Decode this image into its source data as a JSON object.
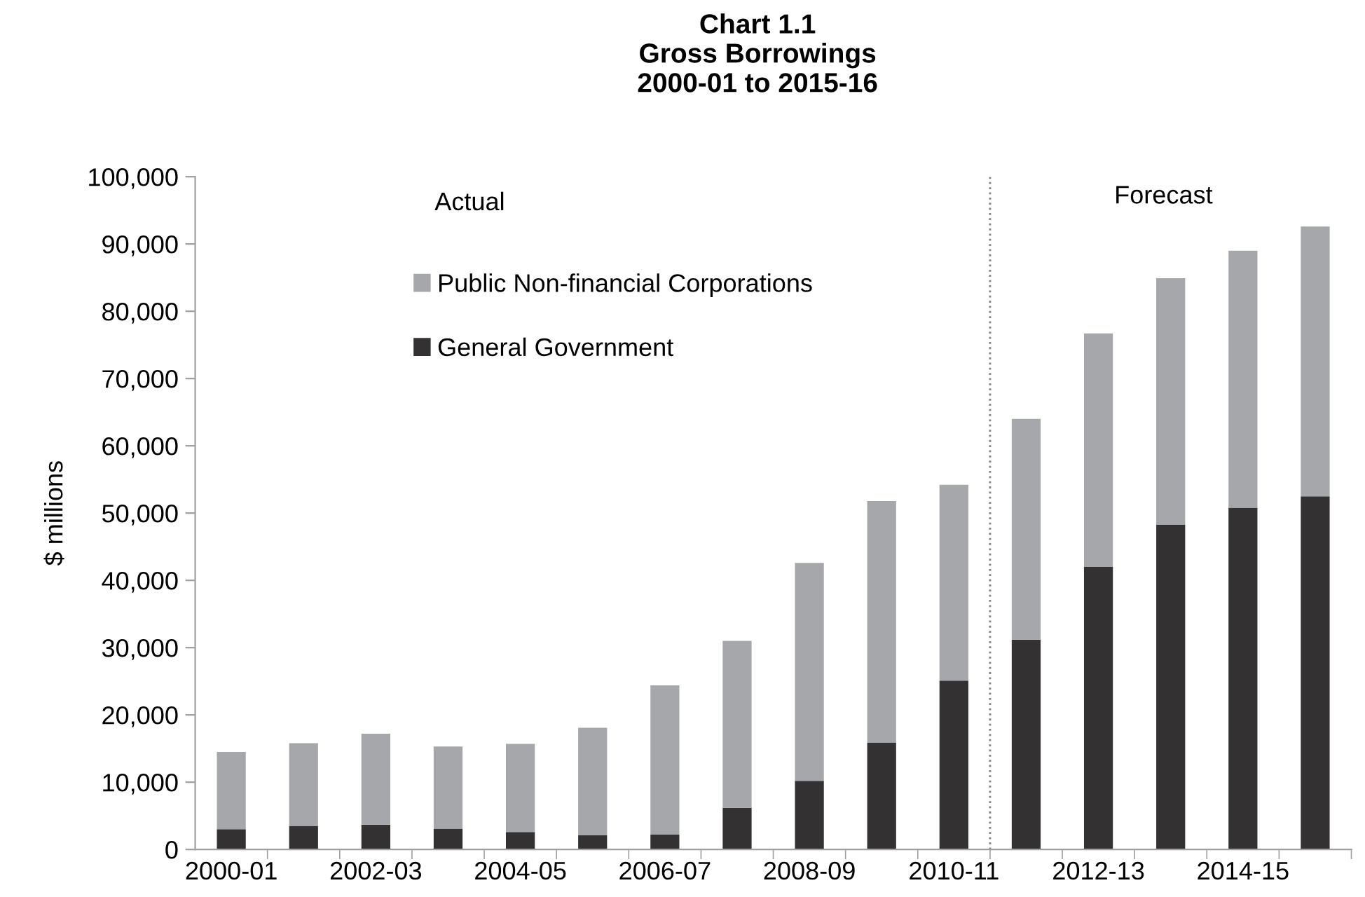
{
  "chart_data": {
    "type": "bar",
    "title": "Chart 1.1\nGross Borrowings\n2000-01 to 2015-16",
    "ylabel": "$ millions",
    "categories": [
      "2000-01",
      null,
      "2002-03",
      null,
      "2004-05",
      null,
      "2006-07",
      null,
      "2008-09",
      null,
      "2010-11",
      null,
      "2012-13",
      null,
      "2014-15",
      null
    ],
    "stacked": true,
    "series": [
      {
        "name": "General Government",
        "color": "#333132",
        "values": [
          3000,
          3500,
          3700,
          3100,
          2600,
          2100,
          2200,
          6200,
          10200,
          15900,
          25100,
          31200,
          42000,
          48300,
          50800,
          52500
        ]
      },
      {
        "name": "Public Non-financial Corporations",
        "color": "#a6a7ab",
        "values": [
          11500,
          12300,
          13500,
          12200,
          13100,
          16000,
          22200,
          24800,
          32400,
          35900,
          29100,
          32800,
          34700,
          36600,
          38200,
          40100
        ]
      }
    ],
    "ylim": [
      0,
      100000
    ],
    "yticks": [
      0,
      {
        "value": 10000,
        "label": "10,000"
      },
      {
        "value": 20000,
        "label": "20,000"
      },
      {
        "value": 30000,
        "label": "30,000"
      },
      {
        "value": 40000,
        "label": "40,000"
      },
      {
        "value": 50000,
        "label": "50,000"
      },
      {
        "value": 60000,
        "label": "60,000"
      },
      {
        "value": 70000,
        "label": "70,000"
      },
      {
        "value": 80000,
        "label": "80,000"
      },
      {
        "value": 90000,
        "label": "90,000"
      },
      {
        "value": 100000,
        "label": "100,000"
      }
    ],
    "annotations": [
      "Actual",
      "Forecast"
    ],
    "legend": "top left",
    "grid": false
  }
}
